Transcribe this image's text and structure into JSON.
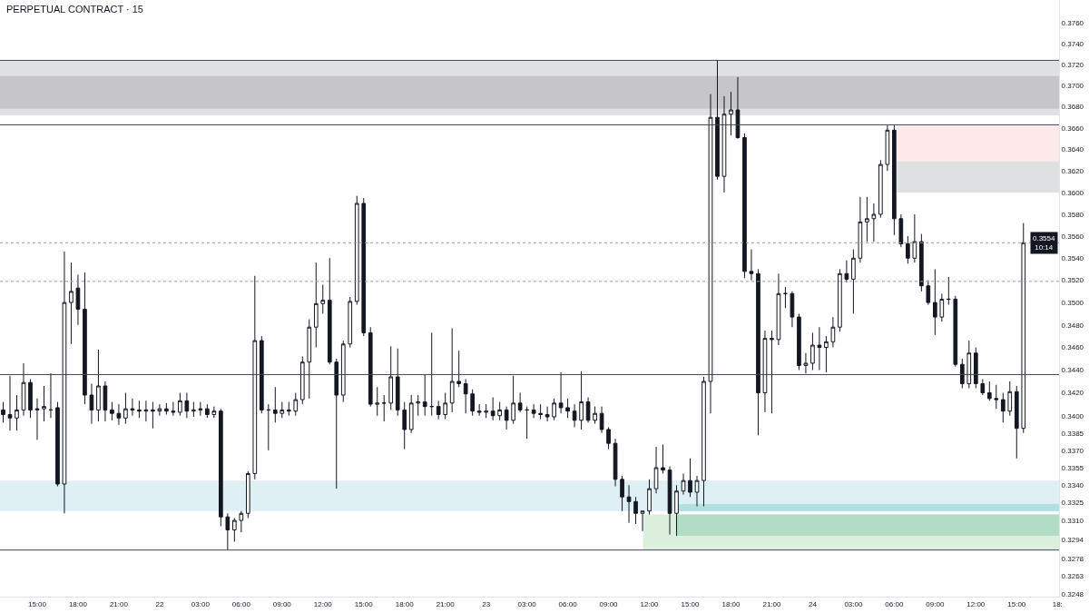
{
  "chart_data": {
    "type": "candlestick",
    "title": "PERPETUAL CONTRACT · 15",
    "color": "#131722",
    "log": "y",
    "x": [
      "--08-21T12:30",
      "--08-21T13:00",
      "--08-21T13:30",
      "--08-21T14:00",
      "--08-21T14:30",
      "--08-21T15:00",
      "--08-21T15:30",
      "--08-21T16:00",
      "--08-21T16:30",
      "--08-21T17:00",
      "--08-21T17:30",
      "--08-21T18:00",
      "--08-21T18:30",
      "--08-21T19:00",
      "--08-21T19:30",
      "--08-21T20:00",
      "--08-21T20:30",
      "--08-21T21:00",
      "--08-21T21:30",
      "--08-21T22:00",
      "--08-21T22:30",
      "--08-21T23:00",
      "--08-21T23:30",
      "--08-22T00:00",
      "--08-22T00:30",
      "--08-22T01:00",
      "--08-22T01:30",
      "--08-22T02:00",
      "--08-22T02:30",
      "--08-22T03:00",
      "--08-22T03:30",
      "--08-22T04:00",
      "--08-22T04:30",
      "--08-22T05:00",
      "--08-22T05:30",
      "--08-22T06:00",
      "--08-22T06:30",
      "--08-22T07:00",
      "--08-22T07:30",
      "--08-22T08:00",
      "--08-22T08:30",
      "--08-22T09:00",
      "--08-22T09:30",
      "--08-22T10:00",
      "--08-22T10:30",
      "--08-22T11:00",
      "--08-22T11:30",
      "--08-22T12:00",
      "--08-22T12:30",
      "--08-22T13:00",
      "--08-22T13:30",
      "--08-22T14:00",
      "--08-22T14:30",
      "--08-22T15:00",
      "--08-22T15:30",
      "--08-22T16:00",
      "--08-22T16:30",
      "--08-22T17:00",
      "--08-22T17:30",
      "--08-22T18:00",
      "--08-22T18:30",
      "--08-22T19:00",
      "--08-22T19:30",
      "--08-22T20:00",
      "--08-22T20:30",
      "--08-22T21:00",
      "--08-22T21:30",
      "--08-22T22:00",
      "--08-22T22:30",
      "--08-22T23:00",
      "--08-22T23:30",
      "--08-23T00:00",
      "--08-23T00:30",
      "--08-23T01:00",
      "--08-23T01:30",
      "--08-23T02:00",
      "--08-23T02:30",
      "--08-23T03:00",
      "--08-23T03:30",
      "--08-23T04:00",
      "--08-23T04:30",
      "--08-23T05:00",
      "--08-23T05:30",
      "--08-23T06:00",
      "--08-23T06:30",
      "--08-23T07:00",
      "--08-23T07:30",
      "--08-23T08:00",
      "--08-23T08:30",
      "--08-23T09:00",
      "--08-23T09:30",
      "--08-23T10:00",
      "--08-23T10:30",
      "--08-23T11:00",
      "--08-23T11:30",
      "--08-23T12:00",
      "--08-23T12:30",
      "--08-23T13:00",
      "--08-23T13:30",
      "--08-23T14:00",
      "--08-23T14:30",
      "--08-23T15:00",
      "--08-23T15:30",
      "--08-23T16:00",
      "--08-23T16:30",
      "--08-23T17:00",
      "--08-23T17:30",
      "--08-23T18:00",
      "--08-23T18:30",
      "--08-23T19:00",
      "--08-23T19:30",
      "--08-23T20:00",
      "--08-23T20:30",
      "--08-23T21:00",
      "--08-23T21:30",
      "--08-23T22:00",
      "--08-23T22:30",
      "--08-23T23:00",
      "--08-23T23:30",
      "--08-24T00:00",
      "--08-24T00:30",
      "--08-24T01:00",
      "--08-24T01:30",
      "--08-24T02:00",
      "--08-24T02:30",
      "--08-24T03:00",
      "--08-24T03:30",
      "--08-24T04:00",
      "--08-24T04:30",
      "--08-24T05:00",
      "--08-24T05:30",
      "--08-24T06:00",
      "--08-24T06:30",
      "--08-24T07:00",
      "--08-24T07:30",
      "--08-24T08:00",
      "--08-24T08:30",
      "--08-24T09:00",
      "--08-24T09:30",
      "--08-24T10:00",
      "--08-24T10:30",
      "--08-24T11:00",
      "--08-24T11:30",
      "--08-24T12:00",
      "--08-24T12:30",
      "--08-24T13:00",
      "--08-24T13:30",
      "--08-24T14:00",
      "--08-24T14:30",
      "--08-24T15:00",
      "--08-24T15:30"
    ],
    "ohlc": [
      [
        0.3405,
        0.3412,
        0.3394,
        0.3401
      ],
      [
        0.3401,
        0.3435,
        0.3387,
        0.3398
      ],
      [
        0.3398,
        0.3418,
        0.3387,
        0.3405
      ],
      [
        0.3405,
        0.3446,
        0.34,
        0.3429
      ],
      [
        0.3429,
        0.3432,
        0.3398,
        0.3405
      ],
      [
        0.3405,
        0.3415,
        0.3379,
        0.3406
      ],
      [
        0.3406,
        0.3426,
        0.3395,
        0.3408
      ],
      [
        0.3405,
        0.3437,
        0.3398,
        0.3405
      ],
      [
        0.3407,
        0.3412,
        0.3339,
        0.3341
      ],
      [
        0.3341,
        0.3546,
        0.3316,
        0.35
      ],
      [
        0.35,
        0.3536,
        0.3463,
        0.351
      ],
      [
        0.3513,
        0.3525,
        0.348,
        0.3494
      ],
      [
        0.3494,
        0.3527,
        0.341,
        0.3418
      ],
      [
        0.3418,
        0.3428,
        0.3393,
        0.3405
      ],
      [
        0.3405,
        0.3458,
        0.3395,
        0.3426
      ],
      [
        0.3426,
        0.343,
        0.3395,
        0.3405
      ],
      [
        0.3405,
        0.3412,
        0.3396,
        0.3402
      ],
      [
        0.3402,
        0.341,
        0.3392,
        0.3398
      ],
      [
        0.3398,
        0.342,
        0.3393,
        0.3406
      ],
      [
        0.3406,
        0.3415,
        0.34,
        0.3405
      ],
      [
        0.3405,
        0.3413,
        0.3398,
        0.3404
      ],
      [
        0.3404,
        0.3413,
        0.3395,
        0.3405
      ],
      [
        0.3405,
        0.3412,
        0.3389,
        0.3404
      ],
      [
        0.3404,
        0.341,
        0.34,
        0.3406
      ],
      [
        0.3406,
        0.3411,
        0.3401,
        0.3404
      ],
      [
        0.3404,
        0.3412,
        0.34,
        0.3403
      ],
      [
        0.3403,
        0.342,
        0.34,
        0.3413
      ],
      [
        0.3413,
        0.342,
        0.3398,
        0.3404
      ],
      [
        0.3404,
        0.3412,
        0.3399,
        0.3405
      ],
      [
        0.3405,
        0.3412,
        0.34,
        0.3406
      ],
      [
        0.3406,
        0.341,
        0.3398,
        0.3401
      ],
      [
        0.3401,
        0.3408,
        0.3398,
        0.3404
      ],
      [
        0.3404,
        0.3406,
        0.3305,
        0.3313
      ],
      [
        0.3313,
        0.3316,
        0.3285,
        0.3302
      ],
      [
        0.3302,
        0.3312,
        0.3292,
        0.331
      ],
      [
        0.331,
        0.3318,
        0.33,
        0.3316
      ],
      [
        0.3316,
        0.3352,
        0.3312,
        0.335
      ],
      [
        0.335,
        0.3524,
        0.3345,
        0.3466
      ],
      [
        0.3466,
        0.347,
        0.3402,
        0.3405
      ],
      [
        0.3405,
        0.341,
        0.337,
        0.3405
      ],
      [
        0.3405,
        0.3425,
        0.3394,
        0.3402
      ],
      [
        0.3402,
        0.3412,
        0.3398,
        0.3405
      ],
      [
        0.3405,
        0.3412,
        0.34,
        0.3404
      ],
      [
        0.3404,
        0.342,
        0.34,
        0.3414
      ],
      [
        0.3414,
        0.3452,
        0.341,
        0.3447
      ],
      [
        0.3447,
        0.3485,
        0.3415,
        0.3478
      ],
      [
        0.3478,
        0.3536,
        0.346,
        0.3499
      ],
      [
        0.3499,
        0.3516,
        0.349,
        0.3502
      ],
      [
        0.3502,
        0.354,
        0.3445,
        0.3447
      ],
      [
        0.3447,
        0.345,
        0.3337,
        0.3418
      ],
      [
        0.3418,
        0.3466,
        0.3412,
        0.3463
      ],
      [
        0.3463,
        0.3505,
        0.346,
        0.3501
      ],
      [
        0.3501,
        0.3597,
        0.3498,
        0.359
      ],
      [
        0.359,
        0.3595,
        0.347,
        0.3473
      ],
      [
        0.3473,
        0.3478,
        0.3408,
        0.341
      ],
      [
        0.341,
        0.3425,
        0.34,
        0.3411
      ],
      [
        0.3411,
        0.3418,
        0.3395,
        0.3411
      ],
      [
        0.3411,
        0.3461,
        0.3405,
        0.3434
      ],
      [
        0.3434,
        0.3459,
        0.34,
        0.3405
      ],
      [
        0.3405,
        0.3412,
        0.3371,
        0.3388
      ],
      [
        0.3388,
        0.3418,
        0.3385,
        0.3411
      ],
      [
        0.3411,
        0.3418,
        0.34,
        0.3412
      ],
      [
        0.3412,
        0.3436,
        0.34,
        0.3408
      ],
      [
        0.3408,
        0.3473,
        0.34,
        0.3408
      ],
      [
        0.3408,
        0.3413,
        0.3397,
        0.3401
      ],
      [
        0.3401,
        0.342,
        0.3397,
        0.3411
      ],
      [
        0.3411,
        0.3477,
        0.3403,
        0.343
      ],
      [
        0.343,
        0.3457,
        0.3425,
        0.3428
      ],
      [
        0.3428,
        0.3432,
        0.3402,
        0.3419
      ],
      [
        0.3419,
        0.3423,
        0.34,
        0.3404
      ],
      [
        0.3404,
        0.341,
        0.34,
        0.3403
      ],
      [
        0.3403,
        0.341,
        0.3398,
        0.3404
      ],
      [
        0.3404,
        0.3416,
        0.3396,
        0.34
      ],
      [
        0.34,
        0.3412,
        0.3396,
        0.3405
      ],
      [
        0.3405,
        0.3408,
        0.3388,
        0.3396
      ],
      [
        0.3396,
        0.3435,
        0.3393,
        0.3411
      ],
      [
        0.3411,
        0.342,
        0.3403,
        0.3405
      ],
      [
        0.3405,
        0.3408,
        0.338,
        0.3405
      ],
      [
        0.3405,
        0.341,
        0.3398,
        0.3402
      ],
      [
        0.3402,
        0.341,
        0.3397,
        0.3401
      ],
      [
        0.3401,
        0.3408,
        0.3395,
        0.3399
      ],
      [
        0.3399,
        0.3415,
        0.3396,
        0.3411
      ],
      [
        0.3411,
        0.3438,
        0.3402,
        0.3407
      ],
      [
        0.3407,
        0.3415,
        0.3398,
        0.3404
      ],
      [
        0.3404,
        0.341,
        0.339,
        0.3396
      ],
      [
        0.3396,
        0.3439,
        0.3388,
        0.3412
      ],
      [
        0.3412,
        0.3416,
        0.3394,
        0.3396
      ],
      [
        0.3396,
        0.3408,
        0.3393,
        0.3402
      ],
      [
        0.3402,
        0.3408,
        0.3385,
        0.3388
      ],
      [
        0.3388,
        0.339,
        0.3371,
        0.3376
      ],
      [
        0.3376,
        0.338,
        0.3339,
        0.3345
      ],
      [
        0.3345,
        0.3348,
        0.3318,
        0.333
      ],
      [
        0.333,
        0.334,
        0.3308,
        0.3326
      ],
      [
        0.3326,
        0.333,
        0.3307,
        0.3316
      ],
      [
        0.3316,
        0.3318,
        0.3301,
        0.3318
      ],
      [
        0.3318,
        0.3345,
        0.3315,
        0.3337
      ],
      [
        0.3337,
        0.3373,
        0.3333,
        0.3355
      ],
      [
        0.3355,
        0.3375,
        0.335,
        0.3353
      ],
      [
        0.3353,
        0.3356,
        0.3298,
        0.3316
      ],
      [
        0.3316,
        0.334,
        0.3297,
        0.3335
      ],
      [
        0.3335,
        0.335,
        0.3332,
        0.3344
      ],
      [
        0.3344,
        0.3363,
        0.333,
        0.3334
      ],
      [
        0.3334,
        0.3348,
        0.3322,
        0.3344
      ],
      [
        0.3344,
        0.3434,
        0.3322,
        0.343
      ],
      [
        0.343,
        0.3692,
        0.3402,
        0.367
      ],
      [
        0.367,
        0.3724,
        0.3612,
        0.3615
      ],
      [
        0.3615,
        0.369,
        0.36,
        0.3673
      ],
      [
        0.3673,
        0.3694,
        0.3653,
        0.3677
      ],
      [
        0.3677,
        0.3708,
        0.365,
        0.3651
      ],
      [
        0.3651,
        0.3655,
        0.3522,
        0.3528
      ],
      [
        0.3528,
        0.3548,
        0.352,
        0.3526
      ],
      [
        0.3526,
        0.353,
        0.3383,
        0.342
      ],
      [
        0.342,
        0.3475,
        0.3403,
        0.3468
      ],
      [
        0.3468,
        0.3475,
        0.3402,
        0.3467
      ],
      [
        0.3467,
        0.3526,
        0.3462,
        0.3508
      ],
      [
        0.3508,
        0.3514,
        0.3495,
        0.3508
      ],
      [
        0.3508,
        0.351,
        0.3478,
        0.3487
      ],
      [
        0.3487,
        0.349,
        0.344,
        0.3444
      ],
      [
        0.3444,
        0.3455,
        0.3437,
        0.3446
      ],
      [
        0.3446,
        0.3473,
        0.344,
        0.3462
      ],
      [
        0.3462,
        0.3478,
        0.344,
        0.346
      ],
      [
        0.346,
        0.347,
        0.3438,
        0.3465
      ],
      [
        0.3465,
        0.3487,
        0.346,
        0.3478
      ],
      [
        0.3478,
        0.353,
        0.3474,
        0.3526
      ],
      [
        0.3526,
        0.3538,
        0.3518,
        0.3521
      ],
      [
        0.3521,
        0.3548,
        0.349,
        0.354
      ],
      [
        0.354,
        0.3596,
        0.3536,
        0.3573
      ],
      [
        0.3573,
        0.3596,
        0.3555,
        0.3576
      ],
      [
        0.3576,
        0.359,
        0.3555,
        0.358
      ],
      [
        0.358,
        0.363,
        0.3577,
        0.3626
      ],
      [
        0.3626,
        0.3663,
        0.362,
        0.3658
      ],
      [
        0.3658,
        0.3663,
        0.3561,
        0.3576
      ],
      [
        0.3576,
        0.358,
        0.355,
        0.3553
      ],
      [
        0.3553,
        0.356,
        0.3535,
        0.354
      ],
      [
        0.354,
        0.358,
        0.3536,
        0.3555
      ],
      [
        0.3555,
        0.3562,
        0.351,
        0.3515
      ],
      [
        0.3515,
        0.352,
        0.3498,
        0.35
      ],
      [
        0.35,
        0.353,
        0.3471,
        0.3487
      ],
      [
        0.3487,
        0.3508,
        0.3483,
        0.3503
      ],
      [
        0.3503,
        0.3523,
        0.3498,
        0.3503
      ],
      [
        0.3503,
        0.3506,
        0.3443,
        0.3445
      ],
      [
        0.3445,
        0.345,
        0.3424,
        0.3428
      ],
      [
        0.3428,
        0.3466,
        0.3424,
        0.3455
      ],
      [
        0.3455,
        0.346,
        0.3424,
        0.3428
      ],
      [
        0.3428,
        0.3432,
        0.3418,
        0.342
      ],
      [
        0.342,
        0.343,
        0.3413,
        0.3415
      ],
      [
        0.3415,
        0.3427,
        0.3406,
        0.3414
      ],
      [
        0.3414,
        0.342,
        0.3394,
        0.3404
      ],
      [
        0.3404,
        0.343,
        0.34,
        0.3421
      ],
      [
        0.3421,
        0.3426,
        0.3363,
        0.3389
      ],
      [
        0.3389,
        0.3572,
        0.3385,
        0.3554
      ]
    ],
    "series": [
      {
        "type": "line",
        "color": "#fde9e9",
        "x": [
          "--08-24T06:12",
          "--08-24T18:07"
        ],
        "values": [
          null,
          null
        ],
        "lower": [
          0.3629,
          0.3629
        ],
        "upper": [
          0.3663,
          0.3663
        ]
      },
      {
        "type": "line",
        "color": "#dfe0e2",
        "x": [
          "--08-24T06:12",
          "--08-24T18:07"
        ],
        "values": [
          null,
          null
        ],
        "lower": [
          0.36,
          0.36
        ],
        "upper": [
          0.3629,
          0.3629
        ]
      },
      {
        "type": "line",
        "color": "#b2dfe0",
        "x": [
          "--08-23T14:00",
          "--08-24T18:07"
        ],
        "values": [
          null,
          null
        ],
        "lower": [
          0.3318,
          0.3318
        ],
        "upper": [
          0.3324,
          0.3324
        ]
      },
      {
        "type": "line",
        "color": "#dcefdc",
        "x": [
          "--08-23T11:32",
          "--08-24T18:07"
        ],
        "values": [
          null,
          null
        ],
        "lower": [
          0.3285,
          0.3285
        ],
        "upper": [
          0.3315,
          0.3315
        ]
      },
      {
        "type": "line",
        "color": "#b1ddc5",
        "x": [
          "--08-23T14:00",
          "--08-24T18:07"
        ],
        "values": [
          null,
          null
        ],
        "lower": [
          0.3297,
          0.3297
        ],
        "upper": [
          0.3315,
          0.3315
        ]
      }
    ],
    "xlim": [
      "--08-21T12:16",
      "--08-24T18:07"
    ],
    "xticks": [
      {
        "value": "--08-21T15:00",
        "label": "15:00"
      },
      {
        "value": "--08-21T18:00",
        "label": "18:00"
      },
      {
        "value": "--08-21T21:00",
        "label": "21:00"
      },
      {
        "value": "--08-22T00:00",
        "label": "22"
      },
      {
        "value": "--08-22T03:00",
        "label": "03:00"
      },
      {
        "value": "--08-22T06:00",
        "label": "06:00"
      },
      {
        "value": "--08-22T09:00",
        "label": "09:00"
      },
      {
        "value": "--08-22T12:00",
        "label": "12:00"
      },
      {
        "value": "--08-22T15:00",
        "label": "15:00"
      },
      {
        "value": "--08-22T18:00",
        "label": "18:00"
      },
      {
        "value": "--08-22T21:00",
        "label": "21:00"
      },
      {
        "value": "--08-23T00:00",
        "label": "23"
      },
      {
        "value": "--08-23T03:00",
        "label": "03:00"
      },
      {
        "value": "--08-23T06:00",
        "label": "06:00"
      },
      {
        "value": "--08-23T09:00",
        "label": "09:00"
      },
      {
        "value": "--08-23T12:00",
        "label": "12:00"
      },
      {
        "value": "--08-23T15:00",
        "label": "15:00"
      },
      {
        "value": "--08-23T18:00",
        "label": "18:00"
      },
      {
        "value": "--08-23T21:00",
        "label": "21:00"
      },
      {
        "value": "--08-24T00:00",
        "label": "24"
      },
      {
        "value": "--08-24T03:00",
        "label": "03:00"
      },
      {
        "value": "--08-24T06:00",
        "label": "06:00"
      },
      {
        "value": "--08-24T09:00",
        "label": "09:00"
      },
      {
        "value": "--08-24T12:00",
        "label": "12:00"
      },
      {
        "value": "--08-24T15:00",
        "label": "15:00"
      },
      {
        "value": "--08-24T18:00",
        "label": "18:"
      }
    ],
    "ylim": [
      0.3246,
      0.3782
    ],
    "yticks": [
      {
        "value": 0.376,
        "label": "0.3760"
      },
      {
        "value": 0.374,
        "label": "0.3740"
      },
      {
        "value": 0.372,
        "label": "0.3720"
      },
      {
        "value": 0.37,
        "label": "0.3700"
      },
      {
        "value": 0.368,
        "label": "0.3680"
      },
      {
        "value": 0.366,
        "label": "0.3660"
      },
      {
        "value": 0.364,
        "label": "0.3640"
      },
      {
        "value": 0.362,
        "label": "0.3620"
      },
      {
        "value": 0.36,
        "label": "0.3600"
      },
      {
        "value": 0.358,
        "label": "0.3580"
      },
      {
        "value": 0.356,
        "label": "0.3560"
      },
      {
        "value": 0.354,
        "label": "0.3540"
      },
      {
        "value": 0.352,
        "label": "0.3520"
      },
      {
        "value": 0.35,
        "label": "0.3500"
      },
      {
        "value": 0.348,
        "label": "0.3480"
      },
      {
        "value": 0.346,
        "label": "0.3460"
      },
      {
        "value": 0.344,
        "label": "0.3440"
      },
      {
        "value": 0.342,
        "label": "0.3420"
      },
      {
        "value": 0.34,
        "label": "0.3400"
      },
      {
        "value": 0.3385,
        "label": "0.3385"
      },
      {
        "value": 0.337,
        "label": "0.3370"
      },
      {
        "value": 0.3355,
        "label": "0.3355"
      },
      {
        "value": 0.334,
        "label": "0.3340"
      },
      {
        "value": 0.3325,
        "label": "0.3325"
      },
      {
        "value": 0.331,
        "label": "0.3310"
      },
      {
        "value": 0.3294,
        "label": "0.3294"
      },
      {
        "value": 0.3278,
        "label": "0.3278"
      },
      {
        "value": 0.3263,
        "label": "0.3263"
      },
      {
        "value": 0.3248,
        "label": "0.3248"
      }
    ],
    "bands": [
      {
        "axis": "y",
        "from": 0.3672,
        "to": 0.3724,
        "color": "#e0e1e3"
      },
      {
        "axis": "y",
        "from": 0.3678,
        "to": 0.3709,
        "color": "#c6c6c8"
      },
      {
        "axis": "y",
        "from": 0.3318,
        "to": 0.3344,
        "color": "#dff0f4"
      }
    ],
    "ref_lines": [
      {
        "axis": "y",
        "value": 0.3724,
        "color": "#434651",
        "line_style": "solid"
      },
      {
        "axis": "y",
        "value": 0.3663,
        "color": "#434651",
        "line_style": "solid"
      },
      {
        "axis": "y",
        "value": 0.3436,
        "color": "#434651",
        "line_style": "solid"
      },
      {
        "axis": "y",
        "value": 0.3285,
        "color": "#434651",
        "line_style": "solid"
      },
      {
        "axis": "y",
        "value": 0.3554,
        "color": "#9598a1",
        "line_style": "dotted",
        "label": "0.3554\n10:14"
      },
      {
        "axis": "y",
        "value": 0.3519,
        "color": "#9598a1",
        "line_style": "dotted"
      }
    ]
  }
}
